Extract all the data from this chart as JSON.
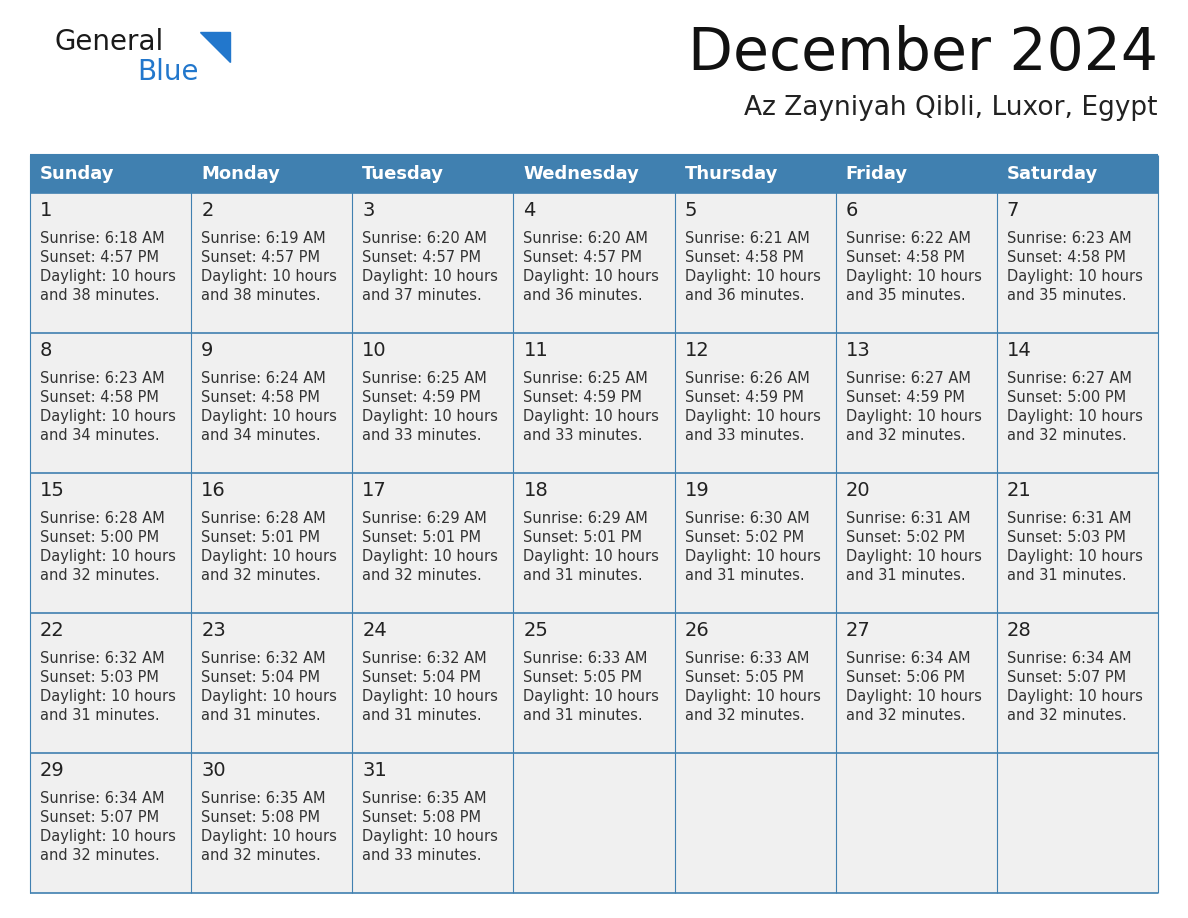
{
  "title": "December 2024",
  "subtitle": "Az Zayniyah Qibli, Luxor, Egypt",
  "days_of_week": [
    "Sunday",
    "Monday",
    "Tuesday",
    "Wednesday",
    "Thursday",
    "Friday",
    "Saturday"
  ],
  "header_bg": "#4080B0",
  "header_text": "#FFFFFF",
  "cell_bg": "#F0F0F0",
  "border_color": "#4080B0",
  "day_num_color": "#222222",
  "text_color": "#333333",
  "title_color": "#111111",
  "subtitle_color": "#222222",
  "calendar_data": [
    [
      {
        "day": 1,
        "sunrise": "6:18 AM",
        "sunset": "4:57 PM",
        "daylight_h": "10 hours",
        "daylight_m": "and 38 minutes."
      },
      {
        "day": 2,
        "sunrise": "6:19 AM",
        "sunset": "4:57 PM",
        "daylight_h": "10 hours",
        "daylight_m": "and 38 minutes."
      },
      {
        "day": 3,
        "sunrise": "6:20 AM",
        "sunset": "4:57 PM",
        "daylight_h": "10 hours",
        "daylight_m": "and 37 minutes."
      },
      {
        "day": 4,
        "sunrise": "6:20 AM",
        "sunset": "4:57 PM",
        "daylight_h": "10 hours",
        "daylight_m": "and 36 minutes."
      },
      {
        "day": 5,
        "sunrise": "6:21 AM",
        "sunset": "4:58 PM",
        "daylight_h": "10 hours",
        "daylight_m": "and 36 minutes."
      },
      {
        "day": 6,
        "sunrise": "6:22 AM",
        "sunset": "4:58 PM",
        "daylight_h": "10 hours",
        "daylight_m": "and 35 minutes."
      },
      {
        "day": 7,
        "sunrise": "6:23 AM",
        "sunset": "4:58 PM",
        "daylight_h": "10 hours",
        "daylight_m": "and 35 minutes."
      }
    ],
    [
      {
        "day": 8,
        "sunrise": "6:23 AM",
        "sunset": "4:58 PM",
        "daylight_h": "10 hours",
        "daylight_m": "and 34 minutes."
      },
      {
        "day": 9,
        "sunrise": "6:24 AM",
        "sunset": "4:58 PM",
        "daylight_h": "10 hours",
        "daylight_m": "and 34 minutes."
      },
      {
        "day": 10,
        "sunrise": "6:25 AM",
        "sunset": "4:59 PM",
        "daylight_h": "10 hours",
        "daylight_m": "and 33 minutes."
      },
      {
        "day": 11,
        "sunrise": "6:25 AM",
        "sunset": "4:59 PM",
        "daylight_h": "10 hours",
        "daylight_m": "and 33 minutes."
      },
      {
        "day": 12,
        "sunrise": "6:26 AM",
        "sunset": "4:59 PM",
        "daylight_h": "10 hours",
        "daylight_m": "and 33 minutes."
      },
      {
        "day": 13,
        "sunrise": "6:27 AM",
        "sunset": "4:59 PM",
        "daylight_h": "10 hours",
        "daylight_m": "and 32 minutes."
      },
      {
        "day": 14,
        "sunrise": "6:27 AM",
        "sunset": "5:00 PM",
        "daylight_h": "10 hours",
        "daylight_m": "and 32 minutes."
      }
    ],
    [
      {
        "day": 15,
        "sunrise": "6:28 AM",
        "sunset": "5:00 PM",
        "daylight_h": "10 hours",
        "daylight_m": "and 32 minutes."
      },
      {
        "day": 16,
        "sunrise": "6:28 AM",
        "sunset": "5:01 PM",
        "daylight_h": "10 hours",
        "daylight_m": "and 32 minutes."
      },
      {
        "day": 17,
        "sunrise": "6:29 AM",
        "sunset": "5:01 PM",
        "daylight_h": "10 hours",
        "daylight_m": "and 32 minutes."
      },
      {
        "day": 18,
        "sunrise": "6:29 AM",
        "sunset": "5:01 PM",
        "daylight_h": "10 hours",
        "daylight_m": "and 31 minutes."
      },
      {
        "day": 19,
        "sunrise": "6:30 AM",
        "sunset": "5:02 PM",
        "daylight_h": "10 hours",
        "daylight_m": "and 31 minutes."
      },
      {
        "day": 20,
        "sunrise": "6:31 AM",
        "sunset": "5:02 PM",
        "daylight_h": "10 hours",
        "daylight_m": "and 31 minutes."
      },
      {
        "day": 21,
        "sunrise": "6:31 AM",
        "sunset": "5:03 PM",
        "daylight_h": "10 hours",
        "daylight_m": "and 31 minutes."
      }
    ],
    [
      {
        "day": 22,
        "sunrise": "6:32 AM",
        "sunset": "5:03 PM",
        "daylight_h": "10 hours",
        "daylight_m": "and 31 minutes."
      },
      {
        "day": 23,
        "sunrise": "6:32 AM",
        "sunset": "5:04 PM",
        "daylight_h": "10 hours",
        "daylight_m": "and 31 minutes."
      },
      {
        "day": 24,
        "sunrise": "6:32 AM",
        "sunset": "5:04 PM",
        "daylight_h": "10 hours",
        "daylight_m": "and 31 minutes."
      },
      {
        "day": 25,
        "sunrise": "6:33 AM",
        "sunset": "5:05 PM",
        "daylight_h": "10 hours",
        "daylight_m": "and 31 minutes."
      },
      {
        "day": 26,
        "sunrise": "6:33 AM",
        "sunset": "5:05 PM",
        "daylight_h": "10 hours",
        "daylight_m": "and 32 minutes."
      },
      {
        "day": 27,
        "sunrise": "6:34 AM",
        "sunset": "5:06 PM",
        "daylight_h": "10 hours",
        "daylight_m": "and 32 minutes."
      },
      {
        "day": 28,
        "sunrise": "6:34 AM",
        "sunset": "5:07 PM",
        "daylight_h": "10 hours",
        "daylight_m": "and 32 minutes."
      }
    ],
    [
      {
        "day": 29,
        "sunrise": "6:34 AM",
        "sunset": "5:07 PM",
        "daylight_h": "10 hours",
        "daylight_m": "and 32 minutes."
      },
      {
        "day": 30,
        "sunrise": "6:35 AM",
        "sunset": "5:08 PM",
        "daylight_h": "10 hours",
        "daylight_m": "and 32 minutes."
      },
      {
        "day": 31,
        "sunrise": "6:35 AM",
        "sunset": "5:08 PM",
        "daylight_h": "10 hours",
        "daylight_m": "and 33 minutes."
      },
      null,
      null,
      null,
      null
    ]
  ],
  "logo_general_color": "#1a1a1a",
  "logo_blue_color": "#2277CC"
}
